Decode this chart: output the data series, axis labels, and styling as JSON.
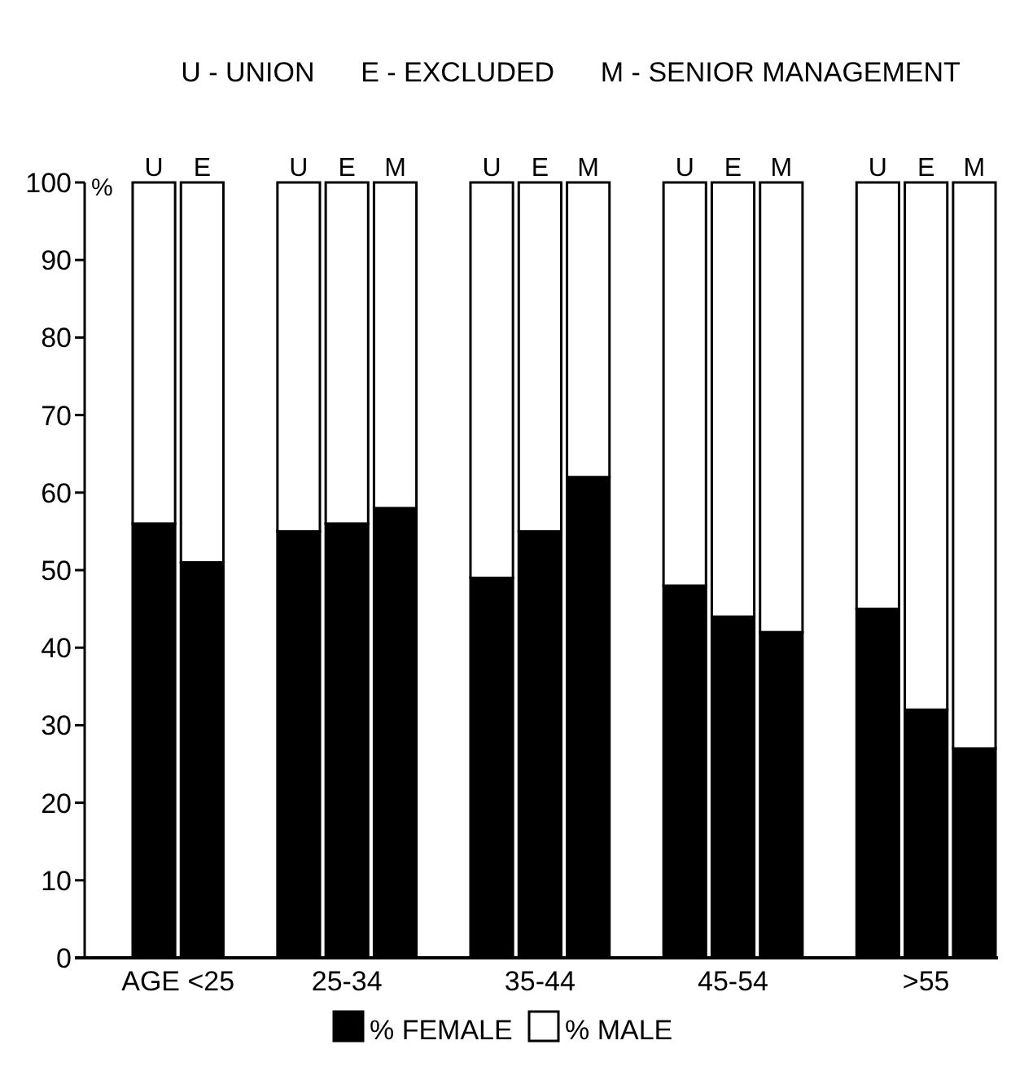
{
  "chart_data": {
    "type": "bar",
    "title": "U - UNION      E - EXCLUDED      M - SENIOR MANAGEMENT",
    "ylabel": "%",
    "categories": [
      "U",
      "E",
      null,
      "U",
      "E",
      "M",
      null,
      "U",
      "E",
      "M",
      null,
      "U",
      "E",
      "M",
      null,
      "U",
      "E",
      "M"
    ],
    "series": [
      {
        "name": "% FEMALE",
        "color": "#000000",
        "values": [
          56,
          51,
          null,
          55,
          56,
          58,
          null,
          49,
          55,
          62,
          null,
          48,
          44,
          42,
          null,
          45,
          32,
          27
        ]
      },
      {
        "name": "% MALE",
        "color": "#ffffff",
        "values": [
          44,
          49,
          null,
          45,
          44,
          42,
          null,
          51,
          45,
          38,
          null,
          52,
          56,
          58,
          null,
          55,
          68,
          73
        ]
      }
    ],
    "stacked": true,
    "ylim": [
      0,
      100
    ],
    "yticks": [
      0,
      10,
      20,
      30,
      40,
      50,
      60,
      70,
      80,
      90,
      100
    ],
    "grid": false,
    "legend": "bottom",
    "annotations": [
      "AGE <25",
      "25-34",
      "35-44",
      "45-54",
      ">55"
    ]
  }
}
